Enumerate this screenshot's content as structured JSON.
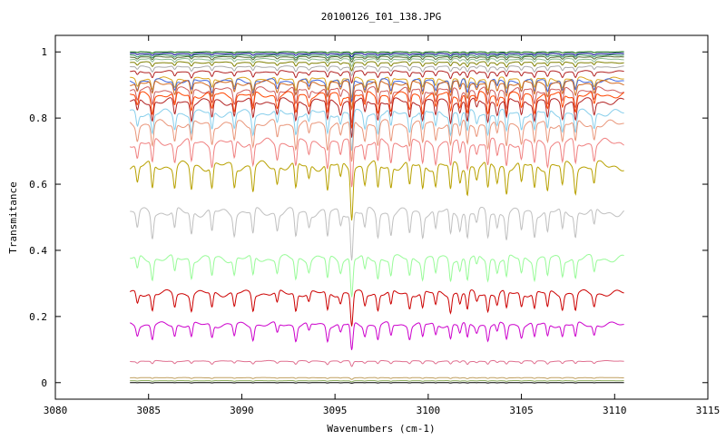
{
  "chart_data": {
    "type": "line",
    "title": "20100126_I01_138.JPG",
    "xlabel": "Wavenumbers (cm-1)",
    "ylabel": "Transmitance",
    "xlim": [
      3080,
      3115
    ],
    "ylim": [
      -0.05,
      1.05
    ],
    "x_ticks": [
      "3080",
      "3085",
      "3090",
      "3095",
      "3100",
      "3105",
      "3110",
      "3115"
    ],
    "y_ticks": [
      "0",
      "0.2",
      "0.4",
      "0.6",
      "0.8",
      "1"
    ],
    "grid": false,
    "legend": "none",
    "x_range_of_series": [
      3084,
      3110.5
    ],
    "line_positions": [
      3084.4,
      3085.2,
      3086.4,
      3087.3,
      3088.4,
      3089.6,
      3090.6,
      3091.9,
      3092.9,
      3093.6,
      3094.6,
      3095.3,
      3095.9,
      3096.6,
      3097.3,
      3098.0,
      3099.0,
      3099.7,
      3100.4,
      3101.2,
      3101.7,
      3102.1,
      3102.6,
      3103.2,
      3103.7,
      3104.2,
      3105.0,
      3105.7,
      3106.4,
      3107.2,
      3107.9,
      3108.9
    ],
    "series": [
      {
        "baseline": 1.0,
        "depth": 0.004,
        "color": "#006400"
      },
      {
        "baseline": 0.995,
        "depth": 0.006,
        "color": "#00008b"
      },
      {
        "baseline": 0.99,
        "depth": 0.008,
        "color": "#2e8b57"
      },
      {
        "baseline": 0.985,
        "depth": 0.01,
        "color": "#556b2f"
      },
      {
        "baseline": 0.978,
        "depth": 0.012,
        "color": "#8fbc8f"
      },
      {
        "baseline": 0.968,
        "depth": 0.014,
        "color": "#808000"
      },
      {
        "baseline": 0.955,
        "depth": 0.016,
        "color": "#a9a9a9"
      },
      {
        "baseline": 0.94,
        "depth": 0.02,
        "color": "#b22222"
      },
      {
        "baseline": 0.918,
        "depth": 0.035,
        "color": "#daa520"
      },
      {
        "baseline": 0.912,
        "depth": 0.04,
        "color": "#4169e1"
      },
      {
        "baseline": 0.906,
        "depth": 0.045,
        "color": "#d2691e"
      },
      {
        "baseline": 0.885,
        "depth": 0.055,
        "color": "#cd5c5c"
      },
      {
        "baseline": 0.87,
        "depth": 0.06,
        "color": "#ff4500"
      },
      {
        "baseline": 0.85,
        "depth": 0.065,
        "color": "#b22222"
      },
      {
        "baseline": 0.815,
        "depth": 0.07,
        "color": "#87ceeb"
      },
      {
        "baseline": 0.782,
        "depth": 0.075,
        "color": "#e9967a"
      },
      {
        "baseline": 0.725,
        "depth": 0.08,
        "color": "#f08080"
      },
      {
        "baseline": 0.655,
        "depth": 0.09,
        "color": "#b8a100"
      },
      {
        "baseline": 0.515,
        "depth": 0.085,
        "color": "#c0c0c0"
      },
      {
        "baseline": 0.375,
        "depth": 0.07,
        "color": "#98fb98"
      },
      {
        "baseline": 0.27,
        "depth": 0.06,
        "color": "#cc0000"
      },
      {
        "baseline": 0.175,
        "depth": 0.05,
        "color": "#cc00cc"
      },
      {
        "baseline": 0.065,
        "depth": 0.01,
        "color": "#e07090"
      },
      {
        "baseline": 0.015,
        "depth": 0.003,
        "color": "#c0a060"
      },
      {
        "baseline": 0.006,
        "depth": 0.002,
        "color": "#90b060"
      },
      {
        "baseline": 0.0,
        "depth": 0.001,
        "color": "#000000"
      }
    ]
  }
}
